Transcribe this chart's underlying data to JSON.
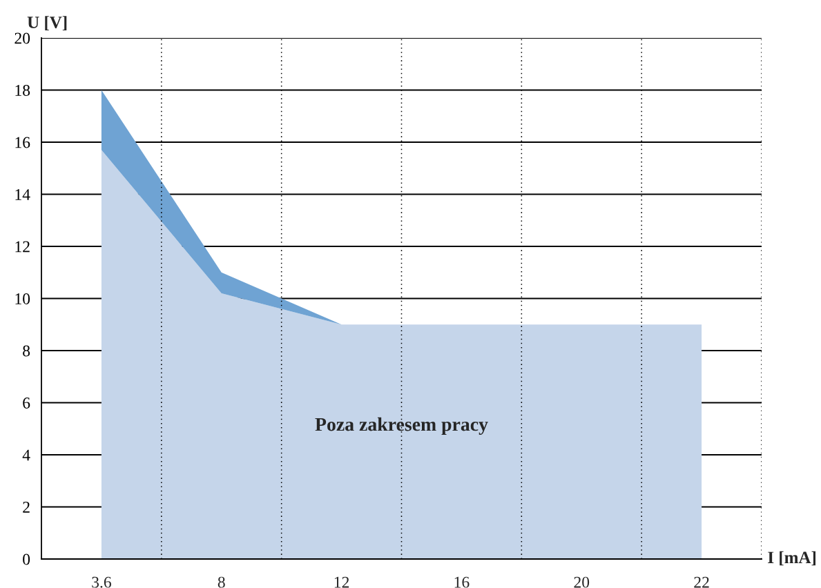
{
  "chart_data": {
    "type": "area",
    "stacked": true,
    "xlabel": "I [mA]",
    "ylabel": "U [V]",
    "categories": [
      "3.6",
      "8",
      "12",
      "16",
      "20",
      "22"
    ],
    "series": [
      {
        "color": "#c5d5ea",
        "values": [
          15.7,
          10.2,
          9,
          9,
          9,
          9
        ]
      },
      {
        "color": "#6fa3d3",
        "values": [
          2.3,
          0.8,
          0,
          null,
          null,
          null
        ]
      }
    ],
    "ylim": [
      0,
      20
    ],
    "yticks": [
      0,
      2,
      4,
      6,
      8,
      10,
      12,
      14,
      16,
      18,
      20
    ],
    "grid": true,
    "annotations": [
      "Poza zakresem pracy"
    ]
  }
}
